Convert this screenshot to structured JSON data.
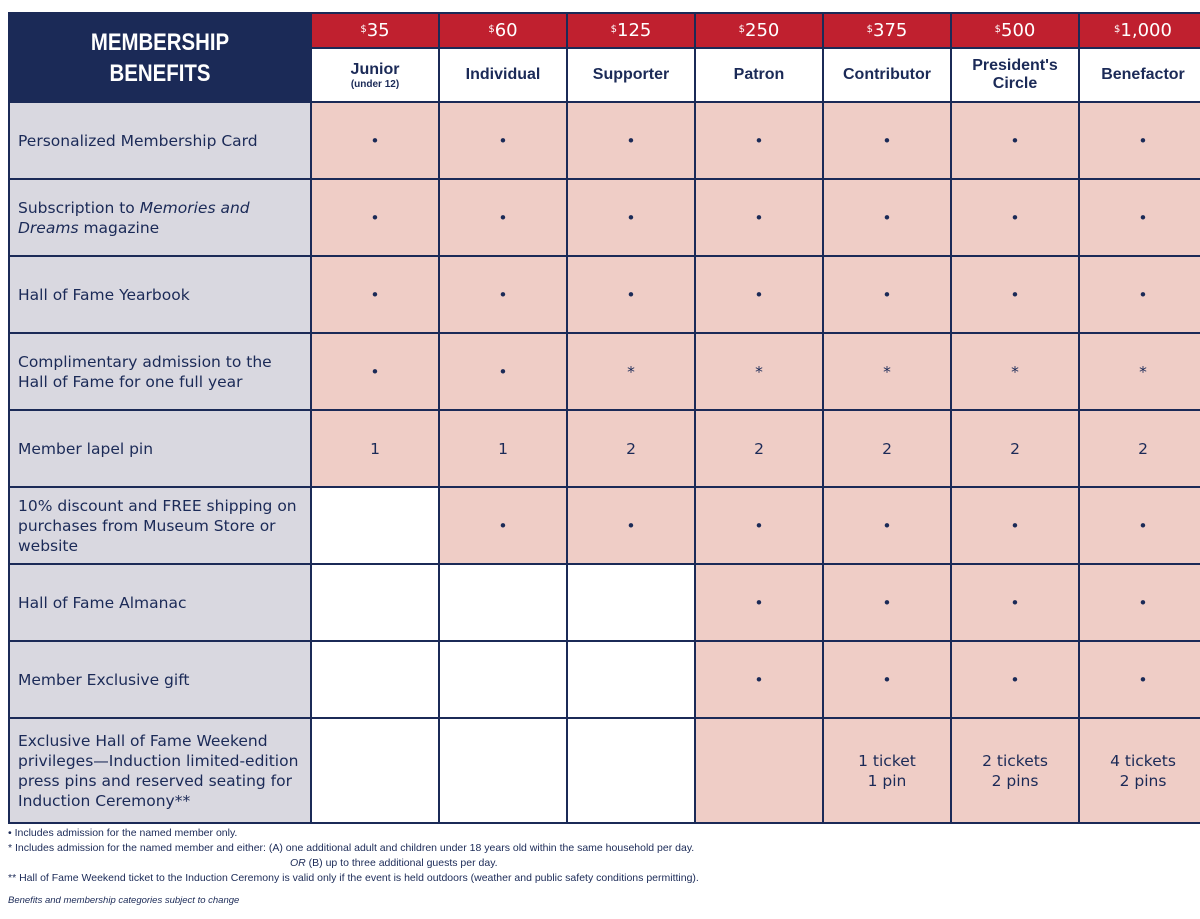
{
  "title_lines": [
    "MEMBERSHIP",
    "BENEFITS"
  ],
  "tiers": [
    {
      "price": "35",
      "name": "Junior",
      "sub": "(under 12)"
    },
    {
      "price": "60",
      "name": "Individual"
    },
    {
      "price": "125",
      "name": "Supporter"
    },
    {
      "price": "250",
      "name": "Patron"
    },
    {
      "price": "375",
      "name": "Contributor"
    },
    {
      "price": "500",
      "name": "President's Circle"
    },
    {
      "price": "1,000",
      "name": "Benefactor"
    }
  ],
  "currency_symbol": "$",
  "benefits": [
    {
      "label": [
        {
          "text": "Personalized Membership Card"
        }
      ],
      "values": [
        "•",
        "•",
        "•",
        "•",
        "•",
        "•",
        "•"
      ]
    },
    {
      "label": [
        {
          "text": "Subscription to "
        },
        {
          "text": "Memories and Dreams",
          "italic": true
        },
        {
          "text": " magazine"
        }
      ],
      "values": [
        "•",
        "•",
        "•",
        "•",
        "•",
        "•",
        "•"
      ]
    },
    {
      "label": [
        {
          "text": "Hall of Fame Yearbook"
        }
      ],
      "values": [
        "•",
        "•",
        "•",
        "•",
        "•",
        "•",
        "•"
      ]
    },
    {
      "label": [
        {
          "text": "Complimentary admission to the Hall of Fame for one full year"
        }
      ],
      "values": [
        "•",
        "•",
        "*",
        "*",
        "*",
        "*",
        "*"
      ]
    },
    {
      "label": [
        {
          "text": "Member lapel pin"
        }
      ],
      "values": [
        "1",
        "1",
        "2",
        "2",
        "2",
        "2",
        "2"
      ]
    },
    {
      "label": [
        {
          "text": "10% discount and FREE shipping on purchases from Museum Store or website"
        }
      ],
      "values": [
        null,
        "•",
        "•",
        "•",
        "•",
        "•",
        "•"
      ]
    },
    {
      "label": [
        {
          "text": "Hall of Fame Almanac"
        }
      ],
      "values": [
        null,
        null,
        null,
        "•",
        "•",
        "•",
        "•"
      ]
    },
    {
      "label": [
        {
          "text": "Member Exclusive gift"
        }
      ],
      "values": [
        null,
        null,
        null,
        "•",
        "•",
        "•",
        "•"
      ]
    },
    {
      "label": [
        {
          "text": "Exclusive Hall of Fame Weekend privileges—Induction limited-edition press pins and reserved seating for Induction Ceremony**"
        }
      ],
      "values": [
        null,
        null,
        null,
        "",
        "1 ticket\n1 pin",
        "2 tickets\n2 pins",
        "4 tickets\n2 pins"
      ]
    }
  ],
  "footnotes": {
    "bullet": "• Includes admission for the named member only.",
    "star": "* Includes admission for the named member and either: (A) one additional adult and children under 18 years old within the same household per day.",
    "star_or": "OR",
    "star_b": " (B) up to three additional guests per day.",
    "double_star": "** Hall of Fame Weekend ticket to the Induction Ceremony is valid only if the event is held outdoors (weather and public safety conditions permitting).",
    "disclaimer": "Benefits and membership categories subject to change"
  },
  "colors": {
    "navy": "#1b2a57",
    "red": "#c0202f",
    "pink": "#efcdc6",
    "lavender": "#d9d8e0"
  }
}
